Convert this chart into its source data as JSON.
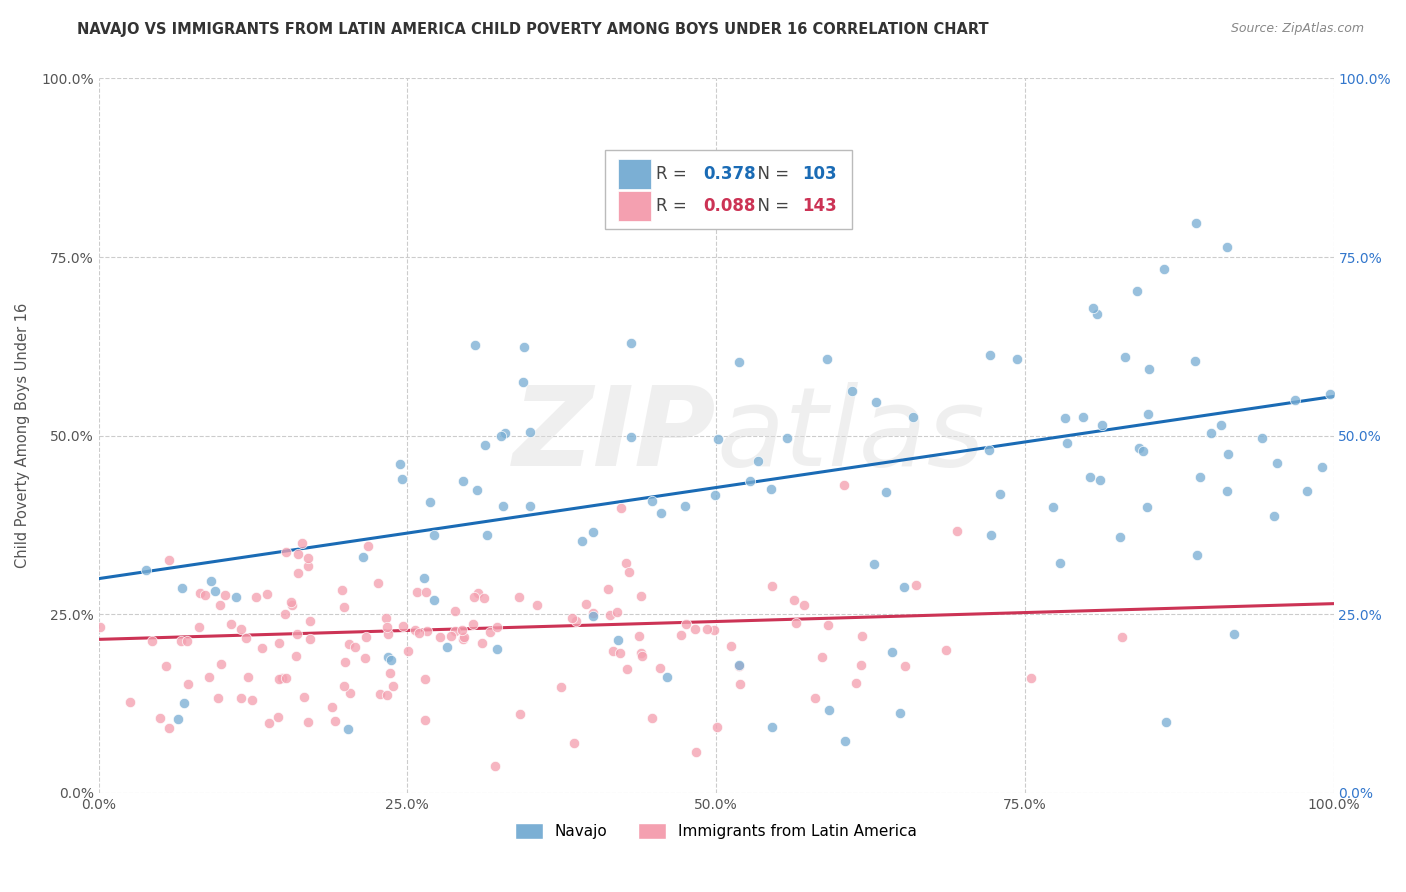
{
  "title": "NAVAJO VS IMMIGRANTS FROM LATIN AMERICA CHILD POVERTY AMONG BOYS UNDER 16 CORRELATION CHART",
  "source": "Source: ZipAtlas.com",
  "ylabel": "Child Poverty Among Boys Under 16",
  "xlim": [
    0.0,
    1.0
  ],
  "ylim": [
    0.0,
    1.0
  ],
  "grid_ticks": [
    0.0,
    0.25,
    0.5,
    0.75,
    1.0
  ],
  "tick_labels": [
    "0.0%",
    "25.0%",
    "50.0%",
    "75.0%",
    "100.0%"
  ],
  "navajo_R": 0.378,
  "navajo_N": 103,
  "latin_R": 0.088,
  "latin_N": 143,
  "navajo_color": "#7BAFD4",
  "latin_color": "#F4A0B0",
  "navajo_line_color": "#1A6BB5",
  "latin_line_color": "#CC3355",
  "watermark": "ZIPatlas",
  "background_color": "#FFFFFF",
  "navajo_line_start_y": 0.3,
  "navajo_line_end_y": 0.555,
  "latin_line_start_y": 0.215,
  "latin_line_end_y": 0.265
}
